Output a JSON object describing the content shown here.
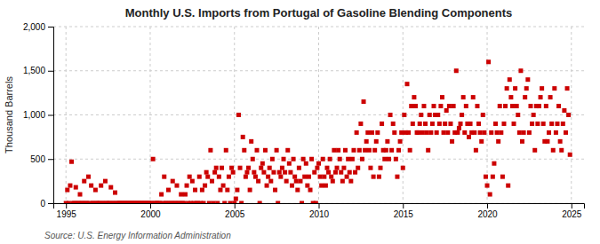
{
  "chart_data": {
    "type": "scatter",
    "title": "Monthly U.S. Imports from Portugal of Gasoline Blending Components",
    "ylabel": "Thousand Barrels",
    "annotations": [
      "Source: U.S. Energy Information Administration"
    ],
    "color": "#cc0000",
    "marker": "square",
    "grid": true,
    "xlim": [
      1994.25,
      2025.75
    ],
    "xticks": [
      1995,
      2000,
      2005,
      2010,
      2015,
      2020,
      2025
    ],
    "ylim": [
      0,
      2000
    ],
    "yticks": [
      0,
      500,
      {
        "value": 1000,
        "label": "1,000"
      },
      {
        "value": 1500,
        "label": "1,500"
      },
      {
        "value": 2000,
        "label": "2,000"
      }
    ],
    "x": [
      1995.0,
      1995.083,
      1995.167,
      1995.25,
      1995.333,
      1995.417,
      1995.5,
      1995.583,
      1995.667,
      1995.75,
      1995.833,
      1995.917,
      1996.0,
      1996.083,
      1996.167,
      1996.25,
      1996.333,
      1996.417,
      1996.5,
      1996.583,
      1996.667,
      1996.75,
      1996.833,
      1996.917,
      1997.0,
      1997.083,
      1997.167,
      1997.25,
      1997.333,
      1997.417,
      1997.5,
      1997.583,
      1997.667,
      1997.75,
      1997.833,
      1997.917,
      1998.0,
      1998.083,
      1998.167,
      1998.25,
      1998.333,
      1998.417,
      1998.5,
      1998.583,
      1998.667,
      1998.75,
      1998.833,
      1998.917,
      1999.0,
      1999.083,
      1999.167,
      1999.25,
      1999.333,
      1999.417,
      1999.5,
      1999.583,
      1999.667,
      1999.75,
      1999.833,
      1999.917,
      2000.0,
      2000.083,
      2000.167,
      2000.25,
      2000.333,
      2000.417,
      2000.5,
      2000.583,
      2000.667,
      2000.75,
      2000.833,
      2000.917,
      2001.0,
      2001.083,
      2001.167,
      2001.25,
      2001.333,
      2001.417,
      2001.5,
      2001.583,
      2001.667,
      2001.75,
      2001.833,
      2001.917,
      2002.0,
      2002.083,
      2002.167,
      2002.25,
      2002.333,
      2002.417,
      2002.5,
      2002.583,
      2002.667,
      2002.75,
      2002.833,
      2002.917,
      2003.0,
      2003.083,
      2003.167,
      2003.25,
      2003.333,
      2003.417,
      2003.5,
      2003.583,
      2003.667,
      2003.75,
      2003.833,
      2003.917,
      2004.0,
      2004.083,
      2004.167,
      2004.25,
      2004.333,
      2004.417,
      2004.5,
      2004.583,
      2004.667,
      2004.75,
      2004.833,
      2004.917,
      2005.0,
      2005.083,
      2005.167,
      2005.25,
      2005.333,
      2005.417,
      2005.5,
      2005.583,
      2005.667,
      2005.75,
      2005.833,
      2005.917,
      2006.0,
      2006.083,
      2006.167,
      2006.25,
      2006.333,
      2006.417,
      2006.5,
      2006.583,
      2006.667,
      2006.75,
      2006.833,
      2006.917,
      2007.0,
      2007.083,
      2007.167,
      2007.25,
      2007.333,
      2007.417,
      2007.5,
      2007.583,
      2007.667,
      2007.75,
      2007.833,
      2007.917,
      2008.0,
      2008.083,
      2008.167,
      2008.25,
      2008.333,
      2008.417,
      2008.5,
      2008.583,
      2008.667,
      2008.75,
      2008.833,
      2008.917,
      2009.0,
      2009.083,
      2009.167,
      2009.25,
      2009.333,
      2009.417,
      2009.5,
      2009.583,
      2009.667,
      2009.75,
      2009.833,
      2009.917,
      2010.0,
      2010.083,
      2010.167,
      2010.25,
      2010.333,
      2010.417,
      2010.5,
      2010.583,
      2010.667,
      2010.75,
      2010.833,
      2010.917,
      2011.0,
      2011.083,
      2011.167,
      2011.25,
      2011.333,
      2011.417,
      2011.5,
      2011.583,
      2011.667,
      2011.75,
      2011.833,
      2011.917,
      2012.0,
      2012.083,
      2012.167,
      2012.25,
      2012.333,
      2012.417,
      2012.5,
      2012.583,
      2012.667,
      2012.75,
      2012.833,
      2012.917,
      2013.0,
      2013.083,
      2013.167,
      2013.25,
      2013.333,
      2013.417,
      2013.5,
      2013.583,
      2013.667,
      2013.75,
      2013.833,
      2013.917,
      2014.0,
      2014.083,
      2014.167,
      2014.25,
      2014.333,
      2014.417,
      2014.5,
      2014.583,
      2014.667,
      2014.75,
      2014.833,
      2014.917,
      2015.0,
      2015.083,
      2015.167,
      2015.25,
      2015.333,
      2015.417,
      2015.5,
      2015.583,
      2015.667,
      2015.75,
      2015.833,
      2015.917,
      2016.0,
      2016.083,
      2016.167,
      2016.25,
      2016.333,
      2016.417,
      2016.5,
      2016.583,
      2016.667,
      2016.75,
      2016.833,
      2016.917,
      2017.0,
      2017.083,
      2017.167,
      2017.25,
      2017.333,
      2017.417,
      2017.5,
      2017.583,
      2017.667,
      2017.75,
      2017.833,
      2017.917,
      2018.0,
      2018.083,
      2018.167,
      2018.25,
      2018.333,
      2018.417,
      2018.5,
      2018.583,
      2018.667,
      2018.75,
      2018.833,
      2018.917,
      2019.0,
      2019.083,
      2019.167,
      2019.25,
      2019.333,
      2019.417,
      2019.5,
      2019.583,
      2019.667,
      2019.75,
      2019.833,
      2019.917,
      2020.0,
      2020.083,
      2020.167,
      2020.25,
      2020.333,
      2020.417,
      2020.5,
      2020.583,
      2020.667,
      2020.75,
      2020.833,
      2020.917,
      2021.0,
      2021.083,
      2021.167,
      2021.25,
      2021.333,
      2021.417,
      2021.5,
      2021.583,
      2021.667,
      2021.75,
      2021.833,
      2021.917,
      2022.0,
      2022.083,
      2022.167,
      2022.25,
      2022.333,
      2022.417,
      2022.5,
      2022.583,
      2022.667,
      2022.75,
      2022.833,
      2022.917,
      2023.0,
      2023.083,
      2023.167,
      2023.25,
      2023.333,
      2023.417,
      2023.5,
      2023.583,
      2023.667,
      2023.75,
      2023.833,
      2023.917,
      2024.0,
      2024.083,
      2024.167,
      2024.25,
      2024.333,
      2024.417,
      2024.5,
      2024.583,
      2024.667,
      2024.75,
      2024.833,
      2024.917
    ],
    "values": [
      0,
      150,
      0,
      200,
      470,
      0,
      0,
      180,
      0,
      0,
      100,
      0,
      0,
      250,
      0,
      0,
      300,
      0,
      200,
      0,
      0,
      150,
      0,
      0,
      0,
      200,
      0,
      0,
      250,
      0,
      0,
      0,
      180,
      0,
      0,
      120,
      0,
      0,
      0,
      0,
      0,
      0,
      0,
      0,
      0,
      0,
      0,
      0,
      0,
      0,
      0,
      0,
      0,
      0,
      0,
      0,
      0,
      0,
      0,
      0,
      0,
      0,
      500,
      0,
      0,
      0,
      0,
      0,
      100,
      0,
      300,
      0,
      0,
      150,
      0,
      0,
      250,
      0,
      0,
      200,
      0,
      0,
      100,
      0,
      0,
      100,
      200,
      0,
      300,
      0,
      250,
      0,
      150,
      0,
      0,
      300,
      0,
      150,
      0,
      200,
      350,
      300,
      0,
      600,
      250,
      0,
      350,
      400,
      0,
      300,
      150,
      400,
      200,
      0,
      600,
      150,
      300,
      0,
      400,
      350,
      0,
      50,
      150,
      1000,
      400,
      0,
      750,
      600,
      300,
      350,
      400,
      150,
      700,
      500,
      350,
      300,
      600,
      250,
      0,
      400,
      450,
      350,
      600,
      200,
      300,
      400,
      250,
      500,
      350,
      150,
      600,
      0,
      350,
      300,
      400,
      500,
      350,
      250,
      600,
      450,
      350,
      200,
      500,
      300,
      250,
      150,
      400,
      250,
      0,
      500,
      300,
      450,
      200,
      300,
      150,
      500,
      0,
      350,
      0,
      400,
      450,
      300,
      200,
      500,
      300,
      200,
      400,
      350,
      500,
      300,
      250,
      600,
      350,
      400,
      600,
      500,
      350,
      250,
      400,
      600,
      300,
      500,
      350,
      250,
      500,
      600,
      350,
      800,
      400,
      600,
      900,
      500,
      1150,
      600,
      700,
      800,
      600,
      400,
      800,
      300,
      600,
      700,
      800,
      300,
      400,
      900,
      600,
      500,
      600,
      700,
      500,
      1000,
      600,
      900,
      800,
      500,
      300,
      600,
      700,
      800,
      400,
      1000,
      800,
      1350,
      800,
      600,
      1100,
      900,
      1200,
      1100,
      800,
      800,
      900,
      1000,
      800,
      1100,
      900,
      800,
      600,
      1000,
      800,
      900,
      1100,
      1000,
      800,
      1000,
      900,
      1100,
      1200,
      800,
      900,
      1050,
      800,
      1100,
      900,
      700,
      1100,
      800,
      1500,
      800,
      850,
      900,
      1000,
      1200,
      800,
      1100,
      900,
      750,
      900,
      800,
      1200,
      800,
      600,
      1100,
      900,
      800,
      700,
      1000,
      800,
      300,
      200,
      1600,
      100,
      800,
      300,
      450,
      900,
      800,
      700,
      1100,
      800,
      300,
      900,
      1100,
      1300,
      200,
      1400,
      1200,
      1100,
      900,
      1300,
      1100,
      1000,
      800,
      1500,
      700,
      800,
      1200,
      1300,
      1400,
      800,
      1100,
      900,
      1000,
      600,
      1100,
      900,
      1100,
      1200,
      1300,
      900,
      700,
      1100,
      700,
      800,
      1200,
      900,
      600,
      1300,
      800,
      900,
      1100,
      700,
      600,
      900,
      1050,
      800,
      1300,
      1000,
      550
    ]
  }
}
